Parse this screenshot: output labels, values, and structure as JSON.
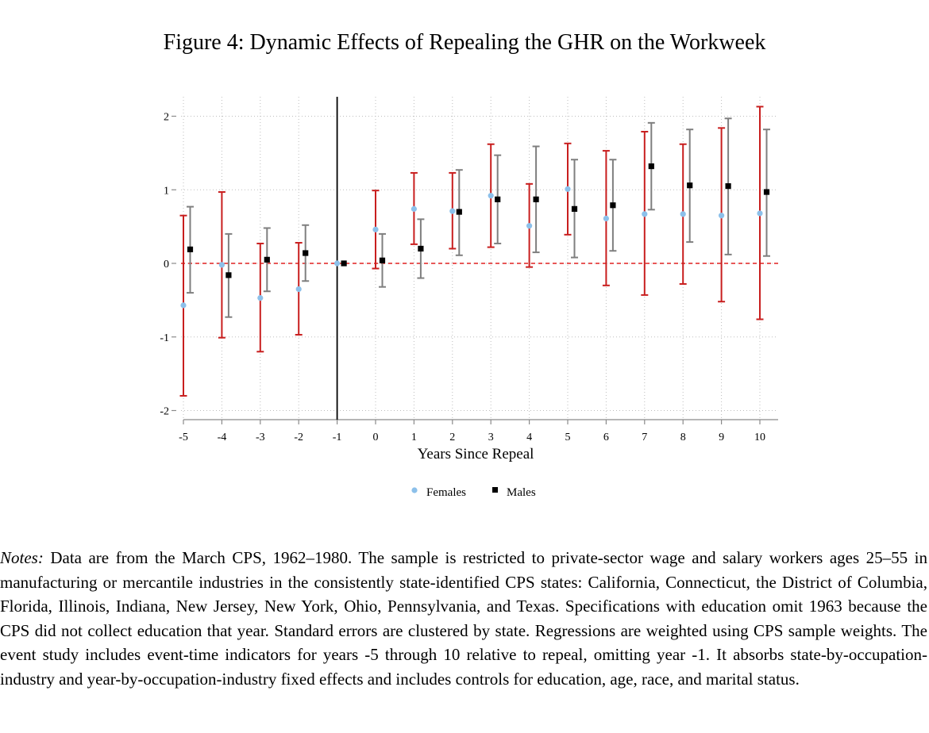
{
  "figure": {
    "title": "Figure 4: Dynamic Effects of Repealing the GHR on the Workweek"
  },
  "chart_data": {
    "type": "scatter",
    "subtype": "event-study coefficient plot with 95% confidence intervals",
    "xlabel": "Years Since Repeal",
    "ylabel": "",
    "x": [
      -5,
      -4,
      -3,
      -2,
      -1,
      0,
      1,
      2,
      3,
      4,
      5,
      6,
      7,
      8,
      9,
      10
    ],
    "xticks": [
      "-5",
      "-4",
      "-3",
      "-2",
      "-1",
      "0",
      "1",
      "2",
      "3",
      "4",
      "5",
      "6",
      "7",
      "8",
      "9",
      "10"
    ],
    "yticks": [
      "-2",
      "-1",
      "0",
      "1",
      "2"
    ],
    "ylim": [
      -2.12,
      2.25
    ],
    "xlim": [
      -5.2,
      10.5
    ],
    "grid": "dotted",
    "reference_lines": {
      "y0": "red dashed",
      "x": -1
    },
    "legend": {
      "placement": "bottom-center"
    },
    "series": [
      {
        "name": "Females",
        "marker": "circle",
        "color": "#8cc0ea",
        "ci_color": "#c81e1e",
        "values": [
          -0.57,
          -0.02,
          -0.47,
          -0.35,
          0.0,
          0.46,
          0.74,
          0.71,
          0.92,
          0.51,
          1.01,
          0.61,
          0.67,
          0.67,
          0.65,
          0.68
        ],
        "ci_low": [
          -1.8,
          -1.01,
          -1.2,
          -0.97,
          0.0,
          -0.07,
          0.26,
          0.2,
          0.22,
          -0.05,
          0.39,
          -0.3,
          -0.43,
          -0.28,
          -0.52,
          -0.76
        ],
        "ci_high": [
          0.65,
          0.97,
          0.27,
          0.28,
          0.0,
          0.99,
          1.23,
          1.23,
          1.62,
          1.08,
          1.63,
          1.53,
          1.79,
          1.62,
          1.84,
          2.13
        ]
      },
      {
        "name": "Males",
        "marker": "square",
        "color": "#000000",
        "ci_color": "#7f7f7f",
        "values": [
          0.19,
          -0.16,
          0.05,
          0.14,
          0.0,
          0.04,
          0.2,
          0.7,
          0.87,
          0.87,
          0.74,
          0.79,
          1.32,
          1.06,
          1.05,
          0.97
        ],
        "ci_low": [
          -0.4,
          -0.73,
          -0.38,
          -0.24,
          0.0,
          -0.32,
          -0.2,
          0.11,
          0.27,
          0.15,
          0.08,
          0.17,
          0.73,
          0.29,
          0.12,
          0.1
        ],
        "ci_high": [
          0.77,
          0.4,
          0.48,
          0.52,
          0.0,
          0.4,
          0.6,
          1.27,
          1.47,
          1.59,
          1.41,
          1.41,
          1.91,
          1.82,
          1.97,
          1.82
        ]
      }
    ]
  },
  "notes": {
    "label": "Notes:",
    "text": "Data are from the March CPS, 1962–1980. The sample is restricted to private-sector wage and salary workers ages 25–55 in manufacturing or mercantile industries in the consistently state-identified CPS states: California, Connecticut, the District of Columbia, Florida, Illinois, Indiana, New Jersey, New York, Ohio, Pennsylvania, and Texas. Specifications with education omit 1963 because the CPS did not collect education that year. Standard errors are clustered by state. Regressions are weighted using CPS sample weights. The event study includes event-time indicators for years -5 through 10 relative to repeal, omitting year -1. It absorbs state-by-occupation-industry and year-by-occupation-industry fixed effects and includes controls for education, age, race, and marital status."
  }
}
